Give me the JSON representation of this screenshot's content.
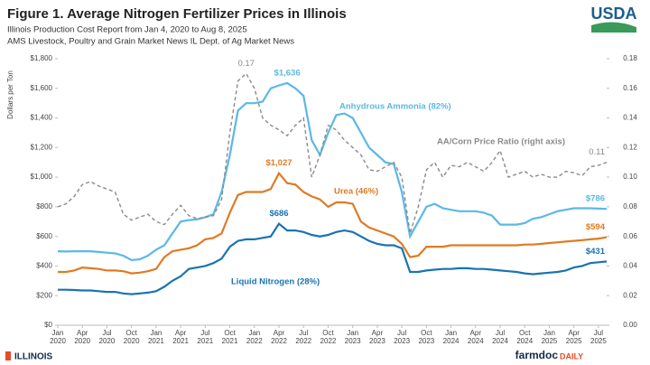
{
  "branding": {
    "usda": "USDA",
    "illinois": "ILLINOIS",
    "farmdoc": "farmdoc",
    "daily": "DAILY"
  },
  "chart_data": {
    "type": "line",
    "title": "Figure 1. Average Nitrogen Fertilizer Prices in Illinois",
    "subtitle": [
      "Illinois Production Cost Report from Jan 4, 2020 to Aug 8, 2025",
      "AMS Livestock, Poultry and Grain Market News IL Dept. of Ag Market News"
    ],
    "y_label": "Dollars per Ton",
    "categories": [
      "Jan 2020",
      null,
      null,
      "Apr 2020",
      null,
      null,
      "Jul 2020",
      null,
      null,
      "Oct 2020",
      null,
      null,
      "Jan 2021",
      null,
      null,
      "Apr 2021",
      null,
      null,
      "Jul 2021",
      null,
      null,
      "Oct 2021",
      null,
      null,
      "Jan 2022",
      null,
      null,
      "Apr 2022",
      null,
      null,
      "Jul 2022",
      null,
      null,
      "Oct 2022",
      null,
      null,
      "Jan 2023",
      null,
      null,
      "Apr 2023",
      null,
      null,
      "Jul 2023",
      null,
      null,
      "Oct 2023",
      null,
      null,
      "Jan 2024",
      null,
      null,
      "Apr 2024",
      null,
      null,
      "Jul 2024",
      null,
      null,
      "Oct 2024",
      null,
      null,
      "Jan 2025",
      null,
      null,
      "Apr 2025",
      null,
      null,
      "Jul 2025",
      null
    ],
    "ylim": [
      0,
      1800
    ],
    "yticks": [
      {
        "value": 0,
        "label": "$0"
      },
      {
        "value": 200,
        "label": "$200"
      },
      {
        "value": 400,
        "label": "$400"
      },
      {
        "value": 600,
        "label": "$600"
      },
      {
        "value": 800,
        "label": "$800"
      },
      {
        "value": 1000,
        "label": "$1,000"
      },
      {
        "value": 1200,
        "label": "$1,200"
      },
      {
        "value": 1400,
        "label": "$1,400"
      },
      {
        "value": 1600,
        "label": "$1,600"
      },
      {
        "value": 1800,
        "label": "$1,800"
      }
    ],
    "y2lim": [
      0,
      0.18
    ],
    "y2ticks": [
      {
        "value": 0,
        "label": "0.00"
      },
      {
        "value": 0.02,
        "label": "0.02"
      },
      {
        "value": 0.04,
        "label": "0.04"
      },
      {
        "value": 0.06,
        "label": "0.06"
      },
      {
        "value": 0.08,
        "label": "0.08"
      },
      {
        "value": 0.1,
        "label": "0.10"
      },
      {
        "value": 0.12,
        "label": "0.12"
      },
      {
        "value": 0.14,
        "label": "0.14"
      },
      {
        "value": 0.16,
        "label": "0.16"
      },
      {
        "value": 0.18,
        "label": "0.18"
      }
    ],
    "series": [
      {
        "name": "Anhydrous Ammonia (82%)",
        "color": "#5bb8e6",
        "values": [
          500,
          498,
          500,
          500,
          500,
          495,
          490,
          485,
          470,
          440,
          445,
          470,
          510,
          540,
          620,
          700,
          710,
          715,
          730,
          750,
          900,
          1150,
          1450,
          1500,
          1500,
          1510,
          1600,
          1620,
          1636,
          1600,
          1550,
          1250,
          1150,
          1300,
          1420,
          1430,
          1400,
          1300,
          1200,
          1150,
          1100,
          1090,
          900,
          600,
          700,
          800,
          820,
          790,
          780,
          770,
          770,
          770,
          760,
          740,
          680,
          680,
          680,
          690,
          720,
          730,
          750,
          770,
          780,
          790,
          790,
          790,
          788,
          786
        ],
        "value_labels": [
          null,
          null,
          null,
          null,
          null,
          null,
          null,
          null,
          null,
          null,
          null,
          null,
          null,
          null,
          null,
          null,
          null,
          null,
          null,
          null,
          null,
          null,
          null,
          null,
          null,
          null,
          null,
          null,
          "$1,636",
          null,
          null,
          null,
          null,
          null,
          null,
          null,
          null,
          null,
          null,
          null,
          null,
          null,
          null,
          null,
          null,
          null,
          null,
          null,
          null,
          null,
          null,
          null,
          null,
          null,
          null,
          null,
          null,
          null,
          null,
          null,
          null,
          null,
          null,
          null,
          null,
          null,
          null,
          "$786"
        ]
      },
      {
        "name": "Urea (46%)",
        "color": "#e07a22",
        "values": [
          360,
          360,
          370,
          390,
          385,
          380,
          370,
          370,
          365,
          350,
          355,
          365,
          380,
          460,
          500,
          510,
          520,
          540,
          580,
          590,
          620,
          760,
          880,
          900,
          900,
          900,
          920,
          1027,
          960,
          950,
          900,
          870,
          850,
          800,
          830,
          830,
          820,
          700,
          660,
          640,
          620,
          600,
          550,
          460,
          470,
          530,
          530,
          530,
          540,
          540,
          540,
          540,
          540,
          540,
          540,
          540,
          540,
          545,
          545,
          550,
          555,
          560,
          565,
          570,
          575,
          580,
          585,
          594
        ],
        "value_labels": [
          null,
          null,
          null,
          null,
          null,
          null,
          null,
          null,
          null,
          null,
          null,
          null,
          null,
          null,
          null,
          null,
          null,
          null,
          null,
          null,
          null,
          null,
          null,
          null,
          null,
          null,
          null,
          "$1,027",
          null,
          null,
          null,
          null,
          null,
          null,
          null,
          null,
          null,
          null,
          null,
          null,
          null,
          null,
          null,
          null,
          null,
          null,
          null,
          null,
          null,
          null,
          null,
          null,
          null,
          null,
          null,
          null,
          null,
          null,
          null,
          null,
          null,
          null,
          null,
          null,
          null,
          null,
          null,
          "$594"
        ]
      },
      {
        "name": "Liquid Nitrogen (28%)",
        "color": "#1a73b0",
        "values": [
          240,
          240,
          238,
          235,
          235,
          230,
          225,
          225,
          215,
          210,
          215,
          220,
          230,
          260,
          300,
          330,
          380,
          390,
          400,
          420,
          450,
          530,
          570,
          580,
          580,
          590,
          600,
          686,
          640,
          640,
          630,
          610,
          600,
          610,
          630,
          640,
          630,
          600,
          570,
          550,
          540,
          540,
          520,
          360,
          360,
          370,
          375,
          380,
          380,
          385,
          385,
          380,
          380,
          375,
          370,
          365,
          360,
          350,
          345,
          350,
          355,
          360,
          370,
          390,
          400,
          420,
          425,
          431
        ],
        "value_labels": [
          null,
          null,
          null,
          null,
          null,
          null,
          null,
          null,
          null,
          null,
          null,
          null,
          null,
          null,
          null,
          null,
          null,
          null,
          null,
          null,
          null,
          null,
          null,
          null,
          null,
          null,
          null,
          "$686",
          null,
          null,
          null,
          null,
          null,
          null,
          null,
          null,
          null,
          null,
          null,
          null,
          null,
          null,
          null,
          null,
          null,
          null,
          null,
          null,
          null,
          null,
          null,
          null,
          null,
          null,
          null,
          null,
          null,
          null,
          null,
          null,
          null,
          null,
          null,
          null,
          null,
          null,
          null,
          "$431"
        ]
      },
      {
        "name": "AA/Corn Price Ratio (right axis)",
        "color": "#8a8a8a",
        "axis": "y2",
        "dashed": true,
        "values": [
          0.08,
          0.082,
          0.087,
          0.095,
          0.097,
          0.094,
          0.092,
          0.09,
          0.075,
          0.071,
          0.073,
          0.075,
          0.07,
          0.068,
          0.075,
          0.081,
          0.074,
          0.072,
          0.073,
          0.074,
          0.085,
          0.13,
          0.165,
          0.17,
          0.16,
          0.14,
          0.135,
          0.132,
          0.128,
          0.135,
          0.14,
          0.1,
          0.115,
          0.135,
          0.132,
          0.125,
          0.12,
          0.115,
          0.105,
          0.104,
          0.107,
          0.11,
          0.1,
          0.062,
          0.08,
          0.105,
          0.11,
          0.1,
          0.108,
          0.107,
          0.11,
          0.107,
          0.104,
          0.11,
          0.118,
          0.1,
          0.102,
          0.104,
          0.1,
          0.102,
          0.1,
          0.1,
          0.104,
          0.103,
          0.101,
          0.107,
          0.108,
          0.11
        ],
        "value_labels": [
          null,
          null,
          null,
          null,
          null,
          null,
          null,
          null,
          null,
          null,
          null,
          null,
          null,
          null,
          null,
          null,
          null,
          null,
          null,
          null,
          null,
          null,
          null,
          "0.17",
          null,
          null,
          null,
          null,
          null,
          null,
          null,
          null,
          null,
          null,
          null,
          null,
          null,
          null,
          null,
          null,
          null,
          null,
          null,
          null,
          null,
          null,
          null,
          null,
          null,
          null,
          null,
          null,
          null,
          null,
          null,
          null,
          null,
          null,
          null,
          null,
          null,
          null,
          null,
          null,
          null,
          null,
          null,
          "0.11"
        ]
      }
    ]
  }
}
